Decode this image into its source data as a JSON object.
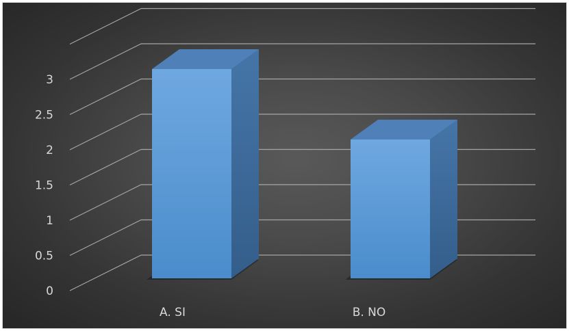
{
  "chart_data": {
    "type": "bar",
    "categories": [
      "A. SI",
      "B. NO"
    ],
    "values": [
      3,
      2
    ],
    "title": "",
    "xlabel": "",
    "ylabel": "",
    "ylim": [
      0,
      3.5
    ],
    "yticks": [
      0,
      0.5,
      1,
      1.5,
      2,
      2.5,
      3
    ],
    "grid": true,
    "legend": "none",
    "style": "3d-columns"
  },
  "colors": {
    "background": "#404040",
    "bar_front": "#5b9bd5",
    "bar_top": "#4f81b8",
    "bar_side": "#3b6896",
    "gridline": "#a6a6a6",
    "text": "#d9d9d9"
  }
}
